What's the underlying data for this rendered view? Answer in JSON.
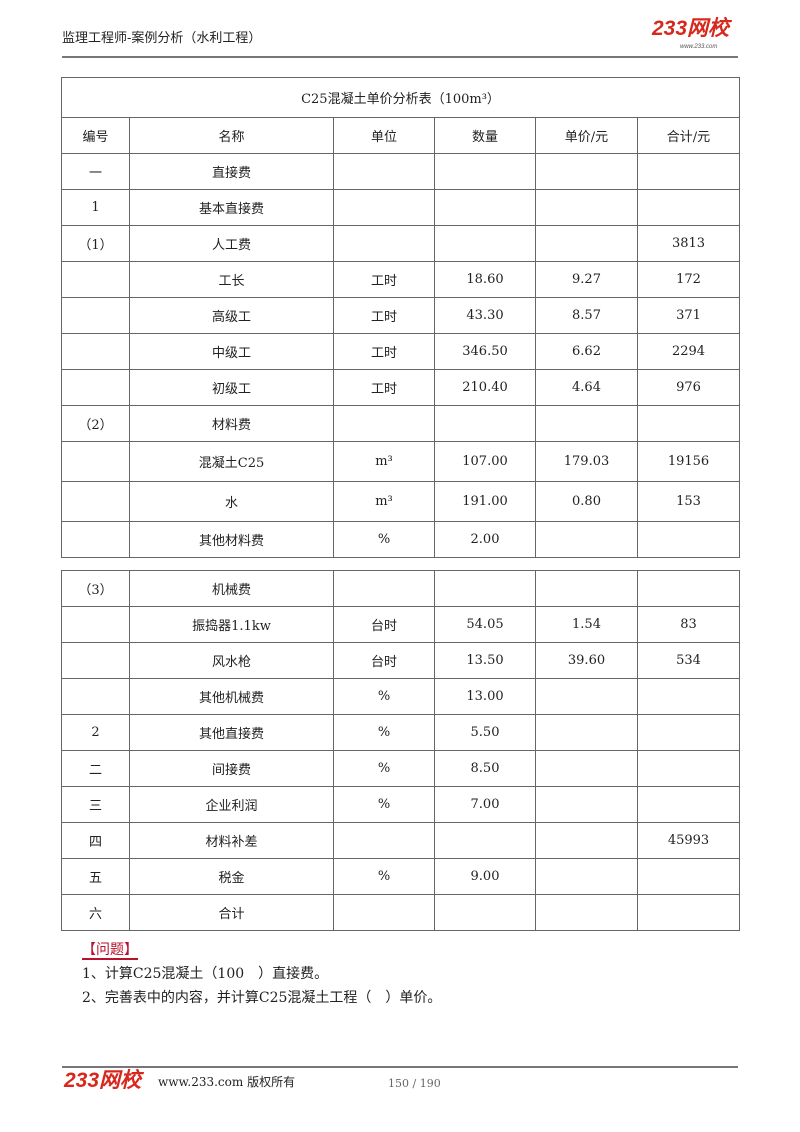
{
  "header": {
    "title": "监理工程师-案例分析（水利工程）",
    "logo": "233网校",
    "logo_sub": "www.233.com"
  },
  "table": {
    "title": "C25混凝土单价分析表（100m³）",
    "columns": [
      "编号",
      "名称",
      "单位",
      "数量",
      "单价/元",
      "合计/元"
    ],
    "rows_part1": [
      [
        "一",
        "直接费",
        "",
        "",
        "",
        ""
      ],
      [
        "1",
        "基本直接费",
        "",
        "",
        "",
        ""
      ],
      [
        "（1）",
        "人工费",
        "",
        "",
        "",
        "3813"
      ],
      [
        "",
        "工长",
        "工时",
        "18.60",
        "9.27",
        "172"
      ],
      [
        "",
        "高级工",
        "工时",
        "43.30",
        "8.57",
        "371"
      ],
      [
        "",
        "中级工",
        "工时",
        "346.50",
        "6.62",
        "2294"
      ],
      [
        "",
        "初级工",
        "工时",
        "210.40",
        "4.64",
        "976"
      ],
      [
        "（2）",
        "材料费",
        "",
        "",
        "",
        ""
      ],
      [
        "",
        "混凝土C25",
        "m³",
        "107.00",
        "179.03",
        "19156"
      ],
      [
        "",
        "水",
        "m³",
        "191.00",
        "0.80",
        "153"
      ],
      [
        "",
        "其他材料费",
        "%",
        "2.00",
        "",
        ""
      ]
    ],
    "rows_part2": [
      [
        "（3）",
        "机械费",
        "",
        "",
        "",
        ""
      ],
      [
        "",
        "振捣器1.1kw",
        "台时",
        "54.05",
        "1.54",
        "83"
      ],
      [
        "",
        "风水枪",
        "台时",
        "13.50",
        "39.60",
        "534"
      ],
      [
        "",
        "其他机械费",
        "%",
        "13.00",
        "",
        ""
      ],
      [
        "2",
        "其他直接费",
        "%",
        "5.50",
        "",
        ""
      ],
      [
        "二",
        "间接费",
        "%",
        "8.50",
        "",
        ""
      ],
      [
        "三",
        "企业利润",
        "%",
        "7.00",
        "",
        ""
      ],
      [
        "四",
        "材料补差",
        "",
        "",
        "",
        "45993"
      ],
      [
        "五",
        "税金",
        "%",
        "9.00",
        "",
        ""
      ],
      [
        "六",
        "合计",
        "",
        "",
        "",
        ""
      ]
    ]
  },
  "questions": {
    "heading": "【问题】",
    "items": [
      "1、计算C25混凝土（100　）直接费。",
      "2、完善表中的内容，并计算C25混凝土工程（　）单价。"
    ]
  },
  "footer": {
    "logo": "233网校",
    "text": "www.233.com 版权所有",
    "page": "150 / 190"
  }
}
